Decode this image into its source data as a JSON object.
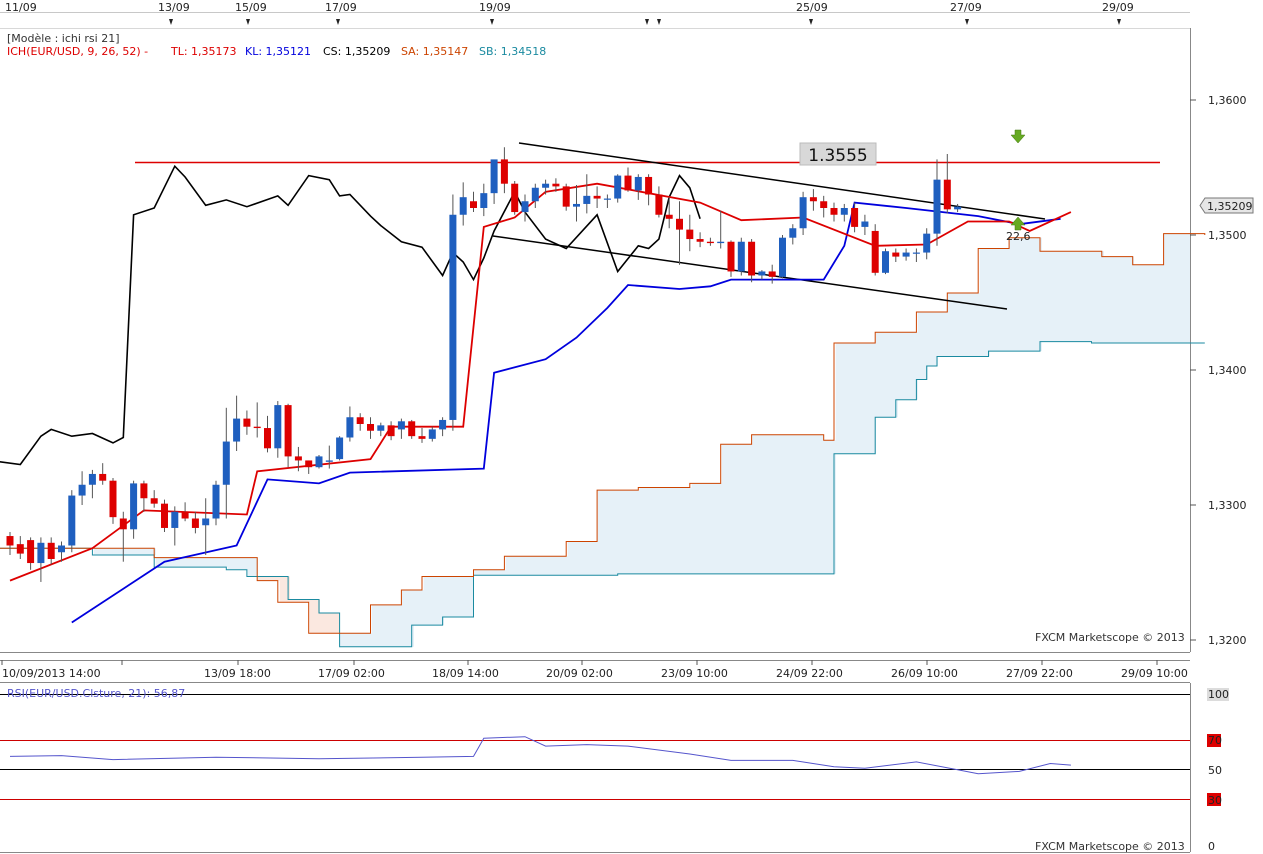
{
  "top_dates": [
    "11/09",
    "13/09",
    "15/09",
    "17/09",
    "19/09",
    "25/09",
    "27/09",
    "29/09"
  ],
  "template_label": "[Modèle : ichi rsi 21]",
  "ichimoku_legend": {
    "indicator": "ICH(EUR/USD, 9, 26, 52) -",
    "tl": "TL: 1,35173",
    "kl": "KL: 1,35121",
    "cs": "CS: 1,35209",
    "sa": "SA: 1,35147",
    "sb": "SB: 1,34518"
  },
  "colors": {
    "tenkan": "#dd0000",
    "kijun": "#0000dd",
    "chikou": "#000000",
    "senkou_a": "#cc4400",
    "senkou_b": "#1a8aa0",
    "bull": "#1f5fbf",
    "bear": "#dd0000",
    "cloud_bull": "#e6f1f8",
    "cloud_bear": "#fbe8e0",
    "rsi": "#5555cc",
    "grid": "#000000"
  },
  "level_label": "1.3555",
  "current_price_label": "1,35209",
  "annotation": "22,6",
  "watermark": "FXCM Marketscope © 2013",
  "chart_data": {
    "type": "candlestick",
    "symbol": "EUR/USD",
    "price_axis": {
      "ticks": [
        "1,3600",
        "1,3500",
        "1,3400",
        "1,3300",
        "1,3200"
      ],
      "tick_values": [
        1.36,
        1.35,
        1.34,
        1.33,
        1.32
      ],
      "ylim": [
        1.319,
        1.367
      ]
    },
    "x_axis_labels": [
      "10/09/2013 14:00",
      "13/09 18:00",
      "17/09 02:00",
      "18/09 14:00",
      "20/09 02:00",
      "23/09 10:00",
      "24/09 22:00",
      "26/09 10:00",
      "27/09 22:00",
      "29/09 10:00"
    ],
    "resistance_level": 1.3555,
    "candles": [
      [
        1.3277,
        1.328,
        1.3263,
        1.327
      ],
      [
        1.3271,
        1.3277,
        1.326,
        1.3264
      ],
      [
        1.3274,
        1.3276,
        1.3252,
        1.3257
      ],
      [
        1.3257,
        1.3276,
        1.3243,
        1.3272
      ],
      [
        1.3272,
        1.3276,
        1.3256,
        1.326
      ],
      [
        1.3265,
        1.3273,
        1.3258,
        1.327
      ],
      [
        1.327,
        1.3311,
        1.3265,
        1.3307
      ],
      [
        1.3307,
        1.3325,
        1.33,
        1.3315
      ],
      [
        1.3315,
        1.3326,
        1.3305,
        1.3323
      ],
      [
        1.3323,
        1.3331,
        1.3315,
        1.3318
      ],
      [
        1.3318,
        1.332,
        1.3286,
        1.3291
      ],
      [
        1.329,
        1.3295,
        1.3258,
        1.3282
      ],
      [
        1.3282,
        1.3318,
        1.3275,
        1.3316
      ],
      [
        1.3316,
        1.3318,
        1.3295,
        1.3305
      ],
      [
        1.3305,
        1.3311,
        1.3298,
        1.3301
      ],
      [
        1.3301,
        1.3304,
        1.328,
        1.3283
      ],
      [
        1.3283,
        1.3299,
        1.327,
        1.3295
      ],
      [
        1.3295,
        1.3302,
        1.3288,
        1.329
      ],
      [
        1.329,
        1.3295,
        1.3279,
        1.3283
      ],
      [
        1.3285,
        1.3305,
        1.3263,
        1.329
      ],
      [
        1.329,
        1.3318,
        1.3285,
        1.3315
      ],
      [
        1.3315,
        1.3372,
        1.329,
        1.3347
      ],
      [
        1.3347,
        1.3381,
        1.334,
        1.3364
      ],
      [
        1.3364,
        1.337,
        1.3352,
        1.3358
      ],
      [
        1.3358,
        1.3376,
        1.335,
        1.3357
      ],
      [
        1.3357,
        1.3366,
        1.3339,
        1.3342
      ],
      [
        1.3342,
        1.3377,
        1.3335,
        1.3374
      ],
      [
        1.3374,
        1.3375,
        1.3328,
        1.3336
      ],
      [
        1.3336,
        1.3343,
        1.3325,
        1.3333
      ],
      [
        1.3333,
        1.3333,
        1.3323,
        1.3328
      ],
      [
        1.3328,
        1.3337,
        1.3327,
        1.3336
      ],
      [
        1.3332,
        1.3344,
        1.3327,
        1.3333
      ],
      [
        1.3334,
        1.3351,
        1.3333,
        1.335
      ],
      [
        1.335,
        1.3373,
        1.3347,
        1.3365
      ],
      [
        1.3365,
        1.3368,
        1.3355,
        1.336
      ],
      [
        1.336,
        1.3365,
        1.3349,
        1.3355
      ],
      [
        1.3355,
        1.3361,
        1.3351,
        1.3359
      ],
      [
        1.3359,
        1.3362,
        1.3348,
        1.3351
      ],
      [
        1.3356,
        1.3364,
        1.3349,
        1.3362
      ],
      [
        1.3362,
        1.3363,
        1.3349,
        1.3351
      ],
      [
        1.3351,
        1.3357,
        1.3346,
        1.3349
      ],
      [
        1.3349,
        1.3358,
        1.3347,
        1.3356
      ],
      [
        1.3356,
        1.3365,
        1.3351,
        1.3363
      ],
      [
        1.3363,
        1.353,
        1.3355,
        1.3515
      ],
      [
        1.3515,
        1.3539,
        1.3507,
        1.3528
      ],
      [
        1.3525,
        1.3532,
        1.3517,
        1.352
      ],
      [
        1.352,
        1.3538,
        1.3514,
        1.3531
      ],
      [
        1.3531,
        1.3555,
        1.3523,
        1.3556
      ],
      [
        1.3556,
        1.3565,
        1.3531,
        1.3538
      ],
      [
        1.3538,
        1.354,
        1.3515,
        1.3517
      ],
      [
        1.3517,
        1.353,
        1.351,
        1.3525
      ],
      [
        1.3525,
        1.3538,
        1.352,
        1.3535
      ],
      [
        1.3535,
        1.3541,
        1.353,
        1.3538
      ],
      [
        1.3538,
        1.3542,
        1.3532,
        1.3536
      ],
      [
        1.3536,
        1.3538,
        1.3518,
        1.3521
      ],
      [
        1.3521,
        1.3537,
        1.351,
        1.3523
      ],
      [
        1.3523,
        1.3545,
        1.3516,
        1.3529
      ],
      [
        1.3529,
        1.3536,
        1.352,
        1.3527
      ],
      [
        1.3527,
        1.353,
        1.352,
        1.3527
      ],
      [
        1.3527,
        1.3545,
        1.3524,
        1.3544
      ],
      [
        1.3544,
        1.355,
        1.3532,
        1.3533
      ],
      [
        1.3533,
        1.3545,
        1.3526,
        1.3543
      ],
      [
        1.3543,
        1.3545,
        1.3522,
        1.353
      ],
      [
        1.353,
        1.3536,
        1.3513,
        1.3515
      ],
      [
        1.3515,
        1.3528,
        1.3505,
        1.3512
      ],
      [
        1.3512,
        1.3525,
        1.3478,
        1.3504
      ],
      [
        1.3504,
        1.3515,
        1.3488,
        1.3497
      ],
      [
        1.3497,
        1.3502,
        1.3491,
        1.3495
      ],
      [
        1.3495,
        1.3498,
        1.3492,
        1.3494
      ],
      [
        1.3494,
        1.3518,
        1.349,
        1.3495
      ],
      [
        1.3495,
        1.3496,
        1.3469,
        1.3473
      ],
      [
        1.3473,
        1.3498,
        1.347,
        1.3495
      ],
      [
        1.3495,
        1.3497,
        1.3465,
        1.347
      ],
      [
        1.347,
        1.3474,
        1.3467,
        1.3473
      ],
      [
        1.3473,
        1.3478,
        1.3464,
        1.3469
      ],
      [
        1.3469,
        1.35,
        1.3468,
        1.3498
      ],
      [
        1.3498,
        1.3508,
        1.3493,
        1.3505
      ],
      [
        1.3505,
        1.3532,
        1.35,
        1.3528
      ],
      [
        1.3528,
        1.3534,
        1.3518,
        1.3525
      ],
      [
        1.3525,
        1.3529,
        1.3513,
        1.352
      ],
      [
        1.352,
        1.3524,
        1.351,
        1.3515
      ],
      [
        1.3515,
        1.3523,
        1.351,
        1.352
      ],
      [
        1.352,
        1.3524,
        1.3502,
        1.3506
      ],
      [
        1.3506,
        1.3515,
        1.35,
        1.351
      ],
      [
        1.3503,
        1.3508,
        1.347,
        1.3472
      ],
      [
        1.3472,
        1.349,
        1.3471,
        1.3488
      ],
      [
        1.3487,
        1.349,
        1.348,
        1.3484
      ],
      [
        1.3484,
        1.349,
        1.3481,
        1.3487
      ],
      [
        1.3487,
        1.349,
        1.348,
        1.3487
      ],
      [
        1.3487,
        1.3505,
        1.3482,
        1.3501
      ],
      [
        1.3501,
        1.3556,
        1.3492,
        1.3541
      ],
      [
        1.3541,
        1.356,
        1.3516,
        1.3519
      ],
      [
        1.3519,
        1.3523,
        1.3517,
        1.3521
      ]
    ],
    "candle_x_start": 10,
    "candle_x_step": 10.3,
    "tenkan": [
      [
        0,
        1.3244
      ],
      [
        8,
        1.3268
      ],
      [
        13,
        1.3296
      ],
      [
        23,
        1.3293
      ],
      [
        24,
        1.3325
      ],
      [
        35,
        1.3334
      ],
      [
        37,
        1.3358
      ],
      [
        44,
        1.3358
      ],
      [
        46,
        1.3506
      ],
      [
        49,
        1.3513
      ],
      [
        52,
        1.3532
      ],
      [
        57,
        1.3538
      ],
      [
        67,
        1.3524
      ],
      [
        71,
        1.3511
      ],
      [
        77,
        1.3513
      ],
      [
        84,
        1.3492
      ],
      [
        89,
        1.3493
      ],
      [
        93,
        1.351
      ],
      [
        97,
        1.351
      ],
      [
        99,
        1.3503
      ],
      [
        103,
        1.3517
      ]
    ],
    "kijun": [
      [
        6,
        1.3213
      ],
      [
        15,
        1.3258
      ],
      [
        22,
        1.327
      ],
      [
        25,
        1.3319
      ],
      [
        30,
        1.3316
      ],
      [
        33,
        1.3324
      ],
      [
        46,
        1.3327
      ],
      [
        47,
        1.3398
      ],
      [
        52,
        1.3408
      ],
      [
        55,
        1.3424
      ],
      [
        58,
        1.3446
      ],
      [
        60,
        1.3463
      ],
      [
        65,
        1.346
      ],
      [
        68,
        1.3462
      ],
      [
        70,
        1.3467
      ],
      [
        79,
        1.3467
      ],
      [
        81,
        1.3492
      ],
      [
        82,
        1.3524
      ],
      [
        87,
        1.352
      ],
      [
        94,
        1.3514
      ],
      [
        98,
        1.3508
      ],
      [
        102,
        1.3512
      ]
    ],
    "chikou": [
      [
        -1,
        1.3332
      ],
      [
        1,
        1.333
      ],
      [
        3,
        1.3351
      ],
      [
        4,
        1.3356
      ],
      [
        6,
        1.3351
      ],
      [
        8,
        1.3353
      ],
      [
        10,
        1.3346
      ],
      [
        11,
        1.335
      ],
      [
        12,
        1.3515
      ],
      [
        14,
        1.352
      ],
      [
        16,
        1.3551
      ],
      [
        17,
        1.3543
      ],
      [
        19,
        1.3522
      ],
      [
        21,
        1.3526
      ],
      [
        23,
        1.3521
      ],
      [
        26,
        1.3529
      ],
      [
        27,
        1.3522
      ],
      [
        29,
        1.3544
      ],
      [
        31,
        1.3541
      ],
      [
        32,
        1.3529
      ],
      [
        33,
        1.353
      ],
      [
        35,
        1.3514
      ],
      [
        36,
        1.3507
      ],
      [
        38,
        1.3495
      ],
      [
        40,
        1.3491
      ],
      [
        42,
        1.347
      ],
      [
        43,
        1.3487
      ],
      [
        44,
        1.348
      ],
      [
        45,
        1.3467
      ],
      [
        46,
        1.3483
      ],
      [
        47,
        1.3503
      ],
      [
        49,
        1.3532
      ],
      [
        50,
        1.3517
      ],
      [
        52,
        1.3497
      ],
      [
        54,
        1.349
      ],
      [
        57,
        1.3515
      ],
      [
        59,
        1.3473
      ],
      [
        61,
        1.3492
      ],
      [
        62,
        1.349
      ],
      [
        63,
        1.3497
      ],
      [
        64,
        1.3528
      ],
      [
        65,
        1.3544
      ],
      [
        66,
        1.3535
      ],
      [
        67,
        1.3512
      ]
    ],
    "senkou_a": [
      [
        -1,
        1.3268
      ],
      [
        14,
        1.3261
      ],
      [
        24,
        1.3244
      ],
      [
        26,
        1.3228
      ],
      [
        29,
        1.3205
      ],
      [
        35,
        1.3226
      ],
      [
        38,
        1.3237
      ],
      [
        40,
        1.3247
      ],
      [
        45,
        1.3252
      ],
      [
        48,
        1.3262
      ],
      [
        54,
        1.3273
      ],
      [
        57,
        1.3311
      ],
      [
        61,
        1.3313
      ],
      [
        66,
        1.3316
      ],
      [
        69,
        1.3345
      ],
      [
        72,
        1.3352
      ],
      [
        79,
        1.3348
      ],
      [
        80,
        1.342
      ],
      [
        84,
        1.3428
      ],
      [
        88,
        1.3443
      ],
      [
        91,
        1.3457
      ],
      [
        94,
        1.349
      ],
      [
        97,
        1.3498
      ],
      [
        100,
        1.3488
      ],
      [
        106,
        1.3484
      ],
      [
        109,
        1.3478
      ],
      [
        112,
        1.3501
      ],
      [
        116,
        1.35
      ]
    ],
    "senkou_b": [
      [
        -1,
        1.3268
      ],
      [
        8,
        1.3263
      ],
      [
        14,
        1.3254
      ],
      [
        21,
        1.3252
      ],
      [
        23,
        1.3247
      ],
      [
        27,
        1.323
      ],
      [
        30,
        1.322
      ],
      [
        32,
        1.3195
      ],
      [
        36,
        1.3195
      ],
      [
        39,
        1.3211
      ],
      [
        42,
        1.3217
      ],
      [
        45,
        1.3248
      ],
      [
        48,
        1.3248
      ],
      [
        55,
        1.3248
      ],
      [
        57,
        1.3248
      ],
      [
        59,
        1.3249
      ],
      [
        77,
        1.3249
      ],
      [
        80,
        1.3338
      ],
      [
        84,
        1.3365
      ],
      [
        86,
        1.3378
      ],
      [
        88,
        1.3393
      ],
      [
        89,
        1.3403
      ],
      [
        90,
        1.341
      ],
      [
        93,
        1.341
      ],
      [
        95,
        1.3414
      ],
      [
        100,
        1.3421
      ],
      [
        105,
        1.342
      ],
      [
        112,
        1.342
      ],
      [
        116,
        1.342
      ]
    ],
    "rsi": {
      "label": "RSI(EUR/USD.Clsture, 21): 56,87",
      "levels": [
        100,
        70,
        50,
        30,
        0
      ],
      "ylim": [
        0,
        100
      ],
      "values": [
        [
          0,
          60.5
        ],
        [
          5,
          61
        ],
        [
          10,
          58.5
        ],
        [
          20,
          60
        ],
        [
          30,
          59
        ],
        [
          40,
          60
        ],
        [
          45,
          60.5
        ],
        [
          46,
          72
        ],
        [
          50,
          73
        ],
        [
          52,
          67
        ],
        [
          56,
          68
        ],
        [
          60,
          67
        ],
        [
          66,
          62
        ],
        [
          70,
          58
        ],
        [
          76,
          58
        ],
        [
          80,
          54
        ],
        [
          83,
          53
        ],
        [
          88,
          57
        ],
        [
          92,
          52
        ],
        [
          94,
          49.5
        ],
        [
          98,
          51
        ],
        [
          101,
          56
        ],
        [
          103,
          55
        ]
      ]
    }
  }
}
